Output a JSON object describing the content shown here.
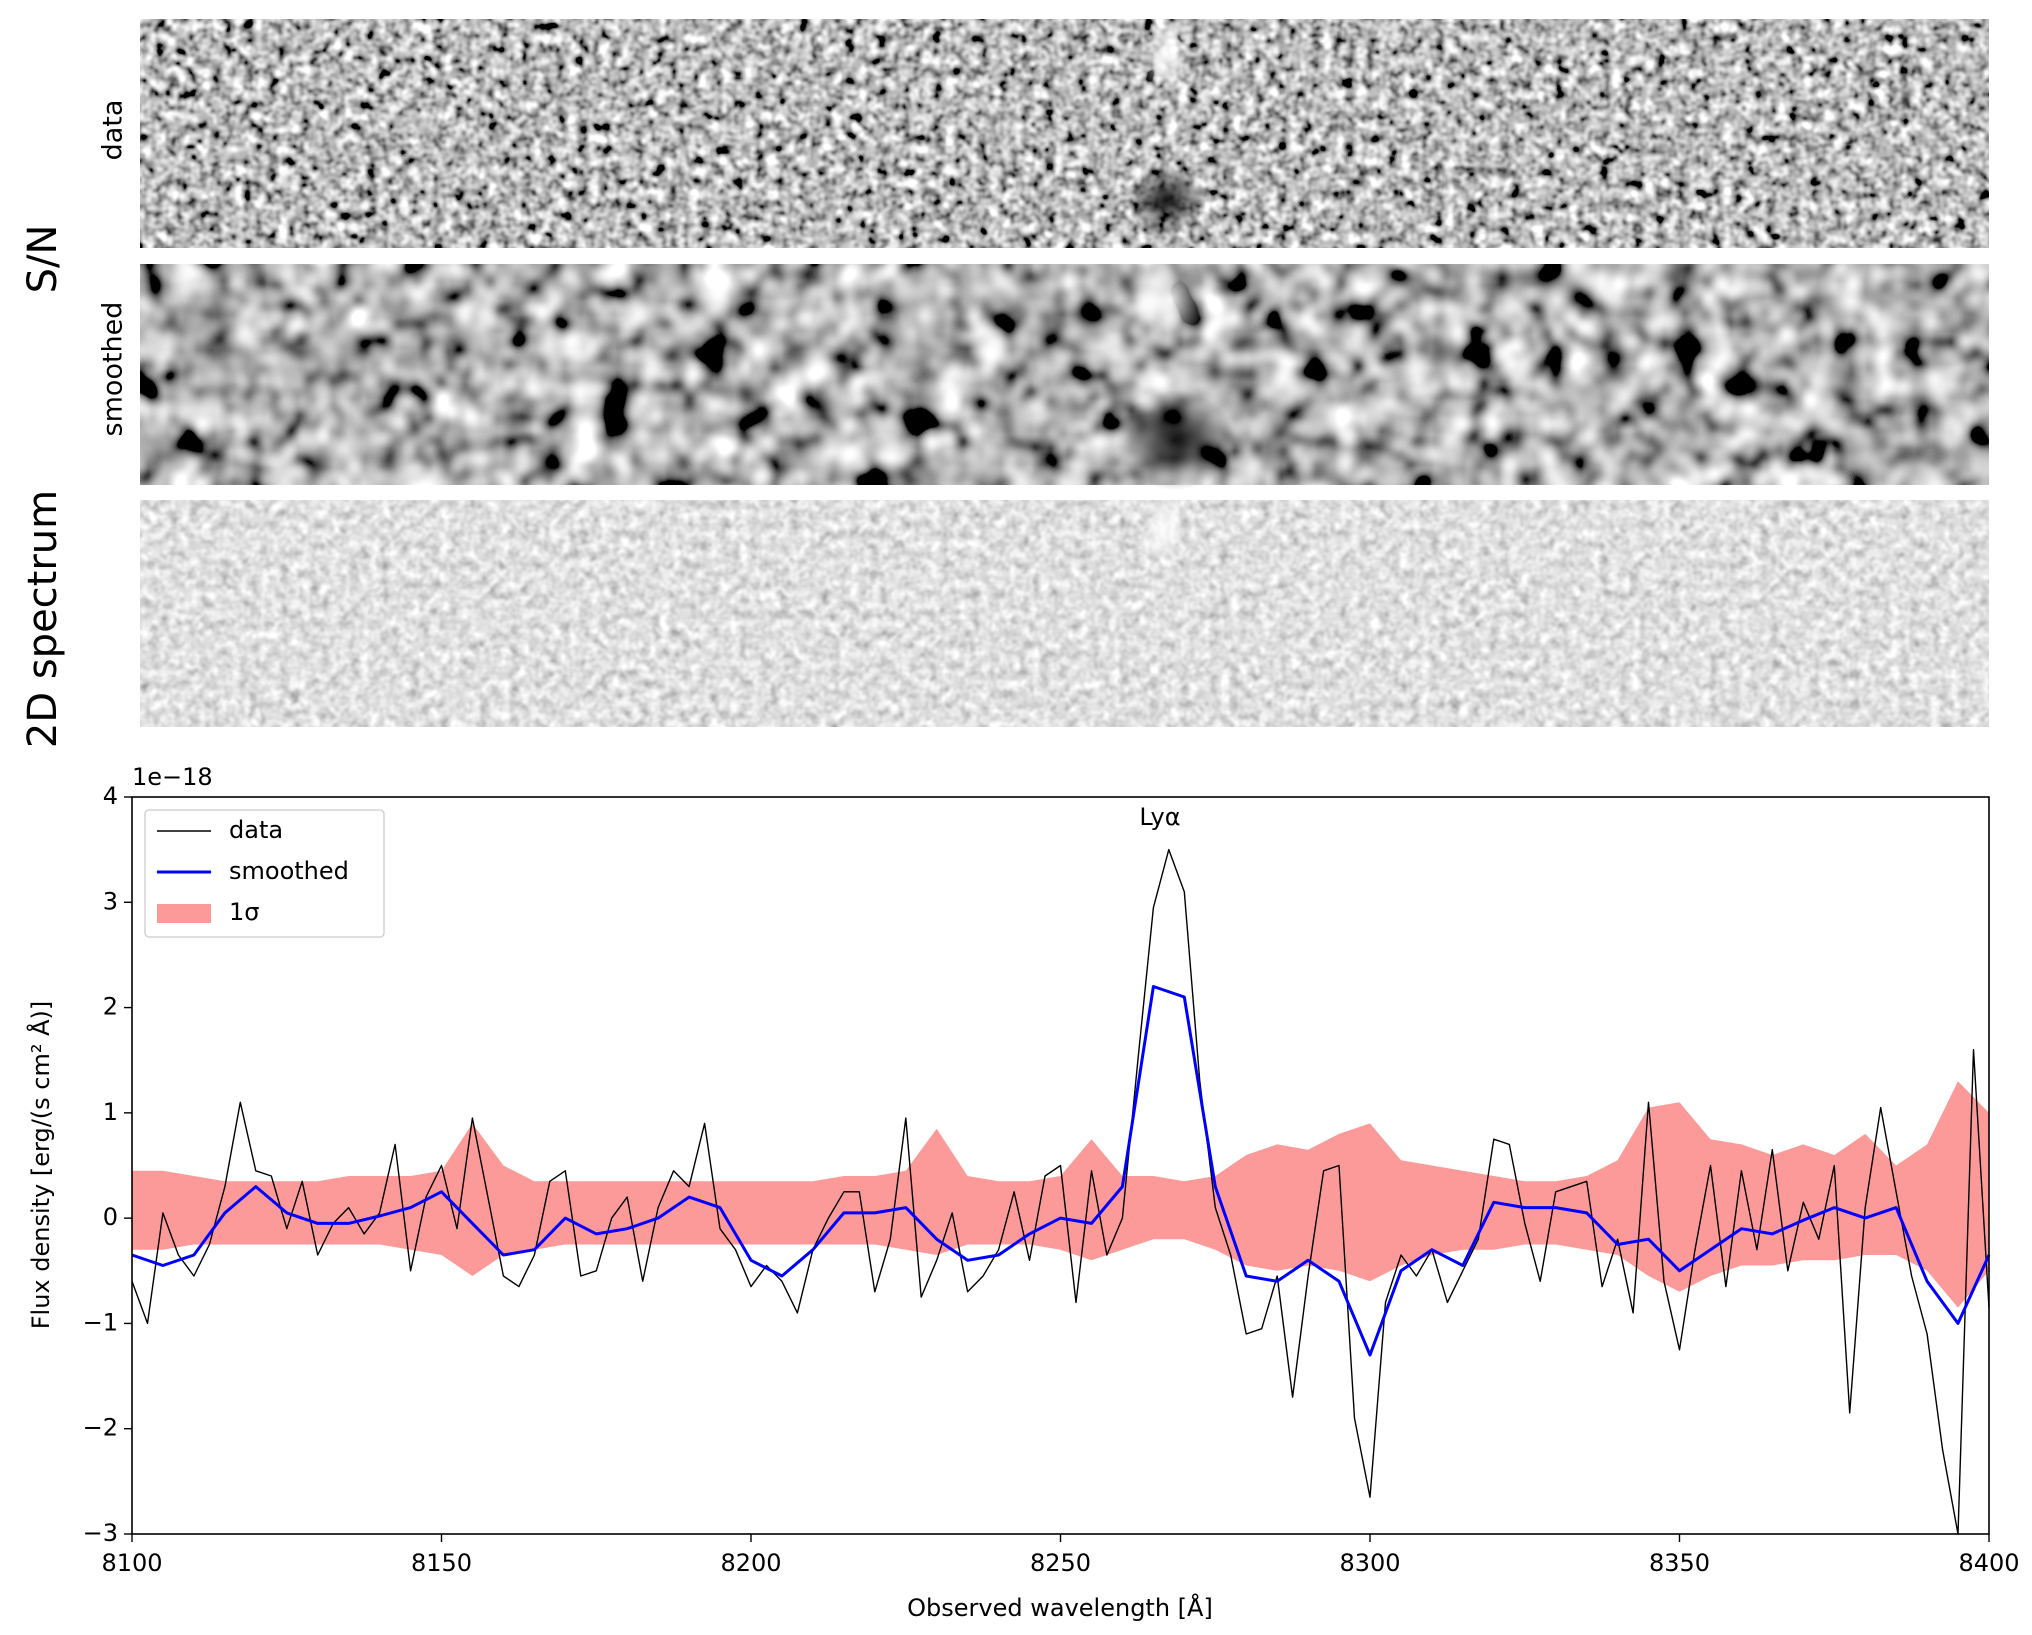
{
  "chart_data": {
    "type": "line",
    "panel_labels": {
      "group": "S/N",
      "top": "data",
      "middle": "smoothed",
      "bottom": "2D spectrum"
    },
    "y_offset_label": "1e−18",
    "annotation": "Lyα",
    "xlabel": "Observed wavelength [Å]",
    "ylabel": "Flux density [erg/(s cm² Å)]",
    "xlim": [
      8100,
      8400
    ],
    "ylim": [
      -3,
      4
    ],
    "xticks": [
      8100,
      8150,
      8200,
      8250,
      8300,
      8350,
      8400
    ],
    "yticks": [
      {
        "value": -3,
        "label": "−3"
      },
      {
        "value": -2,
        "label": "−2"
      },
      {
        "value": -1,
        "label": "−1"
      },
      0,
      1,
      2,
      3,
      4
    ],
    "legend": "upper left",
    "series": [
      {
        "name": "data",
        "color": "#000000",
        "x": [
          8100,
          8102.5,
          8105,
          8107.5,
          8110,
          8112.5,
          8115,
          8117.5,
          8120,
          8122.5,
          8125,
          8127.5,
          8130,
          8132.5,
          8135,
          8137.5,
          8140,
          8142.5,
          8145,
          8147.5,
          8150,
          8152.5,
          8155,
          8157.5,
          8160,
          8162.5,
          8165,
          8167.5,
          8170,
          8172.5,
          8175,
          8177.5,
          8180,
          8182.5,
          8185,
          8187.5,
          8190,
          8192.5,
          8195,
          8197.5,
          8200,
          8202.5,
          8205,
          8207.5,
          8210,
          8212.5,
          8215,
          8217.5,
          8220,
          8222.5,
          8225,
          8227.5,
          8230,
          8232.5,
          8235,
          8237.5,
          8240,
          8242.5,
          8245,
          8247.5,
          8250,
          8252.5,
          8255,
          8257.5,
          8260,
          8262.5,
          8265,
          8267.5,
          8270,
          8272.5,
          8275,
          8277.5,
          8280,
          8282.5,
          8285,
          8287.5,
          8290,
          8292.5,
          8295,
          8297.5,
          8300,
          8302.5,
          8305,
          8307.5,
          8310,
          8312.5,
          8315,
          8317.5,
          8320,
          8322.5,
          8325,
          8327.5,
          8330,
          8332.5,
          8335,
          8337.5,
          8340,
          8342.5,
          8345,
          8347.5,
          8350,
          8352.5,
          8355,
          8357.5,
          8360,
          8362.5,
          8365,
          8367.5,
          8370,
          8372.5,
          8375,
          8377.5,
          8380,
          8382.5,
          8385,
          8387.5,
          8390,
          8392.5,
          8395,
          8397.5,
          8400
        ],
        "values": [
          -0.6,
          -1.0,
          0.05,
          -0.35,
          -0.55,
          -0.25,
          0.3,
          1.1,
          0.45,
          0.4,
          -0.1,
          0.35,
          -0.35,
          -0.05,
          0.1,
          -0.15,
          0.05,
          0.7,
          -0.5,
          0.2,
          0.5,
          -0.1,
          0.95,
          0.2,
          -0.55,
          -0.65,
          -0.35,
          0.35,
          0.45,
          -0.55,
          -0.5,
          0.0,
          0.2,
          -0.6,
          0.1,
          0.45,
          0.3,
          0.9,
          -0.1,
          -0.3,
          -0.65,
          -0.45,
          -0.6,
          -0.9,
          -0.3,
          0.0,
          0.25,
          0.25,
          -0.7,
          -0.2,
          0.95,
          -0.75,
          -0.4,
          0.05,
          -0.7,
          -0.55,
          -0.3,
          0.25,
          -0.4,
          0.4,
          0.5,
          -0.8,
          0.45,
          -0.35,
          0.0,
          1.5,
          2.95,
          3.5,
          3.1,
          1.3,
          0.1,
          -0.35,
          -1.1,
          -1.05,
          -0.55,
          -1.7,
          -0.55,
          0.45,
          0.5,
          -1.9,
          -2.65,
          -0.8,
          -0.35,
          -0.55,
          -0.3,
          -0.8,
          -0.5,
          -0.2,
          0.75,
          0.7,
          -0.05,
          -0.6,
          0.25,
          0.3,
          0.35,
          -0.65,
          -0.2,
          -0.9,
          1.1,
          -0.6,
          -1.25,
          -0.3,
          0.5,
          -0.65,
          0.45,
          -0.3,
          0.65,
          -0.5,
          0.15,
          -0.2,
          0.5,
          -1.85,
          0.1,
          1.05,
          0.25,
          -0.55,
          -1.1,
          -2.2,
          -3.0,
          1.6,
          -0.85
        ]
      },
      {
        "name": "smoothed",
        "color": "#0000ff",
        "x": [
          8100,
          8105,
          8110,
          8115,
          8120,
          8125,
          8130,
          8135,
          8140,
          8145,
          8150,
          8155,
          8160,
          8165,
          8170,
          8175,
          8180,
          8185,
          8190,
          8195,
          8200,
          8205,
          8210,
          8215,
          8220,
          8225,
          8230,
          8235,
          8240,
          8245,
          8250,
          8255,
          8260,
          8265,
          8270,
          8275,
          8280,
          8285,
          8290,
          8295,
          8300,
          8305,
          8310,
          8315,
          8320,
          8325,
          8330,
          8335,
          8340,
          8345,
          8350,
          8355,
          8360,
          8365,
          8370,
          8375,
          8380,
          8385,
          8390,
          8395,
          8400
        ],
        "values": [
          -0.35,
          -0.45,
          -0.35,
          0.05,
          0.3,
          0.05,
          -0.05,
          -0.05,
          0.02,
          0.1,
          0.25,
          -0.05,
          -0.35,
          -0.3,
          0.0,
          -0.15,
          -0.1,
          0.0,
          0.2,
          0.1,
          -0.4,
          -0.55,
          -0.3,
          0.05,
          0.05,
          0.1,
          -0.2,
          -0.4,
          -0.35,
          -0.15,
          0.0,
          -0.05,
          0.3,
          2.2,
          2.1,
          0.3,
          -0.55,
          -0.6,
          -0.4,
          -0.6,
          -1.3,
          -0.5,
          -0.3,
          -0.45,
          0.15,
          0.1,
          0.1,
          0.05,
          -0.25,
          -0.2,
          -0.5,
          -0.3,
          -0.1,
          -0.15,
          -0.02,
          0.1,
          0.0,
          0.1,
          -0.6,
          -1.0,
          -0.35
        ]
      },
      {
        "name": "1σ",
        "color": "#fc9a9a",
        "kind": "band",
        "x": [
          8100,
          8105,
          8110,
          8115,
          8120,
          8125,
          8130,
          8135,
          8140,
          8145,
          8150,
          8155,
          8160,
          8165,
          8170,
          8175,
          8180,
          8185,
          8190,
          8195,
          8200,
          8205,
          8210,
          8215,
          8220,
          8225,
          8230,
          8235,
          8240,
          8245,
          8250,
          8255,
          8260,
          8265,
          8270,
          8275,
          8280,
          8285,
          8290,
          8295,
          8300,
          8305,
          8310,
          8315,
          8320,
          8325,
          8330,
          8335,
          8340,
          8345,
          8350,
          8355,
          8360,
          8365,
          8370,
          8375,
          8380,
          8385,
          8390,
          8395,
          8400
        ],
        "upper": [
          0.45,
          0.45,
          0.4,
          0.35,
          0.35,
          0.35,
          0.35,
          0.4,
          0.4,
          0.4,
          0.45,
          0.9,
          0.5,
          0.35,
          0.35,
          0.35,
          0.35,
          0.35,
          0.35,
          0.35,
          0.35,
          0.35,
          0.35,
          0.4,
          0.4,
          0.45,
          0.85,
          0.4,
          0.35,
          0.35,
          0.4,
          0.75,
          0.4,
          0.4,
          0.35,
          0.4,
          0.6,
          0.7,
          0.65,
          0.8,
          0.9,
          0.55,
          0.5,
          0.45,
          0.4,
          0.35,
          0.35,
          0.4,
          0.55,
          1.05,
          1.1,
          0.75,
          0.7,
          0.6,
          0.7,
          0.6,
          0.8,
          0.5,
          0.7,
          1.3,
          1.0
        ],
        "lower": [
          -0.3,
          -0.3,
          -0.25,
          -0.25,
          -0.25,
          -0.25,
          -0.25,
          -0.25,
          -0.25,
          -0.3,
          -0.35,
          -0.55,
          -0.35,
          -0.3,
          -0.25,
          -0.25,
          -0.25,
          -0.25,
          -0.25,
          -0.25,
          -0.25,
          -0.25,
          -0.25,
          -0.25,
          -0.25,
          -0.3,
          -0.35,
          -0.25,
          -0.25,
          -0.25,
          -0.3,
          -0.4,
          -0.3,
          -0.2,
          -0.2,
          -0.3,
          -0.45,
          -0.5,
          -0.45,
          -0.5,
          -0.6,
          -0.45,
          -0.35,
          -0.3,
          -0.3,
          -0.25,
          -0.25,
          -0.3,
          -0.35,
          -0.55,
          -0.7,
          -0.55,
          -0.45,
          -0.45,
          -0.4,
          -0.4,
          -0.35,
          -0.35,
          -0.5,
          -0.85,
          -0.5
        ]
      }
    ]
  }
}
